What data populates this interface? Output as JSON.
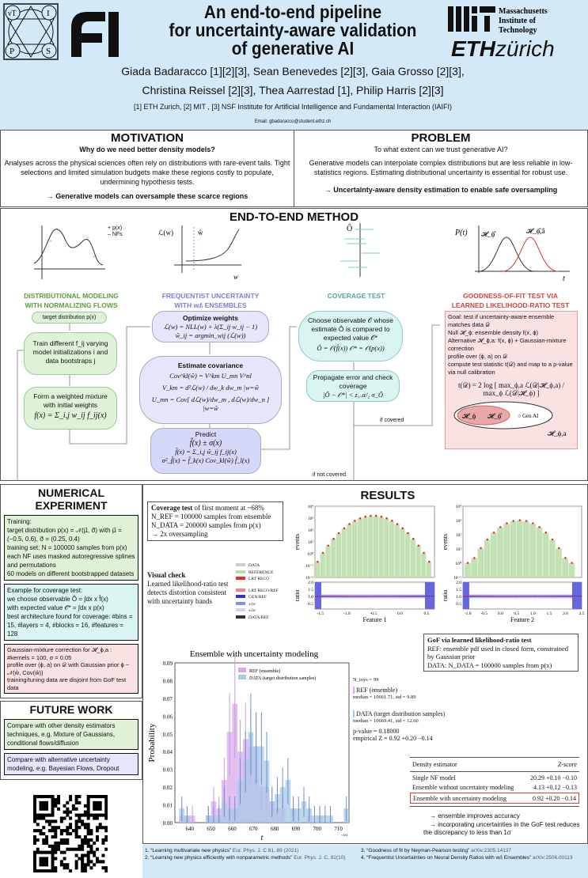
{
  "header": {
    "title_lines": [
      "An end-to-end pipeline",
      "for uncertainty-aware validation",
      "of generative AI"
    ],
    "authors_line1": "Giada Badaracco [1][2][3], Sean Benevedes [2][3], Gaia Grosso [2][3],",
    "authors_line2": "Christina Reissel [2][3], Thea Aarrestad [1],  Philip Harris [2][3]",
    "affiliations": "[1] ETH Zurich, [2] MIT , [3] NSF Institute for Artificial Intelligence and Fundamental Interaction (IAIFI)",
    "email": "Email: gbadaracco@student.ethz.ch",
    "logos": {
      "iaifi": "νT I P S",
      "fi": "FI",
      "mit": "Massachusetts Institute of Technology",
      "eth_bold": "ETH",
      "eth_light": "zürich"
    }
  },
  "motivation": {
    "heading": "MOTIVATION",
    "question": "Why do we need better density models?",
    "body": "Analyses across the physical sciences often rely on distributions with rare-event tails. Tight selections and limited simulation budgets make these regions costly to populate, undermining hypothesis tests.",
    "conclusion": "→ Generative models can oversample these scarce regions"
  },
  "problem": {
    "heading": "PROBLEM",
    "question": "To what extent can we trust generative AI?",
    "body": "Generative models can interpolate complex distributions but are less reliable in low-statistics regions. Estimating distributional uncertainty is essential for robust use.",
    "conclusion": "→ Uncertainty-aware density estimation to enable safe oversampling"
  },
  "method": {
    "heading": "END-TO-END METHOD",
    "col1": {
      "legend": [
        "+ p(x)",
        "– NFs"
      ],
      "label1": "DISTRIBUTIONAL MODELING",
      "label2": "WITH NORMALIZING FLOWS",
      "target": "target distribution p(x)",
      "train": "Train different f_ij varying model initializations i and data bootstraps j",
      "mixture": "Form a weighted mixture with initial weights",
      "mixture_eq": "f(x) = Σ_i,j w_ij f_ij(x)"
    },
    "col2": {
      "axis_y": "ℒ(w)",
      "axis_x": "w",
      "what": "ŵ",
      "label1": "FREQUENTIST UNCERTAINTY",
      "label2": "WITH wᵢfᵢ ENSEMBLES",
      "opt_title": "Optimize weights",
      "opt_eq1": "ℒ(w) = NLL(w) + λ(Σ_ij w_ij − 1)",
      "opt_eq2": "ŵ_ij = argmin_wij (ℒ(w))",
      "cov_title": "Estimate covariance",
      "cov_eq1": "Cov^kl(ŵ) = V^km U_mn V^nl",
      "cov_eq2": "V_km = d²ℒ(w) / dw_k dw_m |w=ŵ",
      "cov_eq3": "U_mn = Cov[ dℒ(w)/dw_m , dℒ(w)/dw_n ] |w=ŵ",
      "pred_title": "Predict",
      "pred_eq1": "f̂(x) ± σ(x)",
      "pred_eq2": "f̂(x) = Σ_i,j ŵ_ij f_ij(x)",
      "pred_eq3": "σ²_f̂(x) = f̂_k(x) Cov_kl(ŵ) f̂_l(x)"
    },
    "col3": {
      "axis_y": "Ô",
      "label": "COVERAGE TEST",
      "choose": "Choose observable 𝒪 whose estimate Ô is compared to expected value 𝒪*",
      "choose_eq": "Ô = 𝒪(f̂(x))   𝒪* = 𝒪(p(x))",
      "prop": "Propagate error and check coverage",
      "prop_eq": "|Ô − 𝒪*| < z₁₋α/₂ σ_Ô",
      "if_covered": "if covered",
      "if_not_covered": "if not covered"
    },
    "col4": {
      "axis_y": "P(t)",
      "axis_x": "t",
      "h0": "𝓗_ϕ̂",
      "h1": "𝓗_ϕ̂,â",
      "label1": "GOODNESS-OF-FIT TEST VIA",
      "label2": "LEARNED LIKELIHOOD-RATIO TEST",
      "bullets": [
        "Goal: test if uncertainty-aware ensemble matches data 𝒟",
        "Null 𝓗_ϕ: ensemble density f(x, ϕ)",
        "Alternative 𝓗_ϕ,a: f(x, ϕ) + Gaussian-mixture correction",
        "profile over (ϕ, a) on 𝒟",
        "compute test statistic t(𝒟) and map to a p-value via null calibration"
      ],
      "eq": "t(𝒟) = 2 log [ max_ϕ,a ℒ(𝒟|𝓗_ϕ,a) / max_ϕ ℒ(𝒟|𝓗_ϕ) ]",
      "venn": {
        "h_phi": "𝓗_ϕ",
        "h_phihat": "𝓗_ϕ̂",
        "genai": "○ Gen AI",
        "outer": "𝓗_ϕ,a"
      }
    }
  },
  "numerical": {
    "heading": "NUMERICAL EXPERIMENT",
    "training_title": "Training:",
    "training": [
      "target distribution p(x) = 𝒩(μ⃗, σ⃗) with μ⃗ = (−0.5, 0.6), σ⃗ = (0.25, 0.4)",
      "training set: N = 100000 samples from p(x)",
      "each NF uses masked autoregressive splines and permutations",
      "60 models on different bootstrapped datasets"
    ],
    "coverage_title": "Example for coverage test:",
    "coverage_lines": [
      "we choose observable Ô = ∫dx x f̂(x)",
      "with expected value 𝒪* = ∫dx x p(x)",
      "best architecture found for coverage: #bins = 15, #layers = 4, #blocks = 16, #features = 128"
    ],
    "gof": [
      "Gaussian-mixture correction for 𝓗_ϕ,a : #kernels = 100,  σ = 0.05",
      "profile over (ϕ, a) on 𝒟 with Gaussian prior ϕ ~ 𝒩(ŵ, Cov(ŵ))",
      "training/tuning data are disjoint from GoF test data"
    ]
  },
  "future": {
    "heading": "FUTURE WORK",
    "items": [
      "Compare with other density estimators techniques, e.g. Mixture of Gaussians, conditional flows/diffusion",
      "Compare with alternative uncertainty modeling, e.g. Bayesian Flows, Dropout"
    ]
  },
  "results": {
    "heading": "RESULTS",
    "coverage_box": {
      "title": "Coverage test",
      "title_rest": " of first moment at ~68%",
      "items": [
        "N_REF = 100000 samples from ensemble",
        "N_DATA = 200000 samples from p(x)"
      ],
      "conclusion": "→ 2x oversampling"
    },
    "visual": {
      "title": "Visual check",
      "body": "Learned likelihood-ratio test detects distortion consistent with uncertainty bands"
    },
    "legend": [
      "DATA",
      "REFERENCE",
      "LRT RECO",
      "LRT RECO/REF",
      "GEN/REF",
      "±1σ",
      "±2σ",
      "DATA/REF"
    ],
    "gof_box": {
      "title": "GoF via learned likelihood-ratio test",
      "items": [
        "REF: ensemble pdf used in closed form, constrained by Gaussian prior",
        "DATA:  N_DATA = 100000 samples from p(x)"
      ]
    },
    "stats": {
      "ntoys": "N_toys = 99",
      "ref_label": "REF (ensemble)",
      "ref_stat": "median = 10661.71, std = 9.89",
      "data_label": "DATA (target distribution samples)",
      "data_stat": "median = 10669.41, std = 12.60",
      "pvalue": "p-value = 0.18000",
      "z": "empirical Z = 0.92 +0.20 −0.14"
    },
    "table": {
      "headers": [
        "Density estimator",
        "Z-score"
      ],
      "rows": [
        [
          "Single NF model",
          "20.29 +0.10 −0.10"
        ],
        [
          "Ensemble without uncertainty modeling",
          "4.13 +0.12 −0.13"
        ],
        [
          "Ensemble with uncertainty modeling",
          "0.92 +0.20 −0.14"
        ]
      ],
      "highlight_row": 2
    },
    "conclusions": [
      "→ ensemble improves accuracy",
      "→ incorporating uncertainties in the GoF test reduces the discrepancy to less than 1σ"
    ]
  },
  "references": [
    {
      "text": "1. “Learning multivariate new physics” ",
      "link": "Eur. Phys. J. C 81, 89 (2021)"
    },
    {
      "text": "2. “Learning new physics efficiently with nonparametric methods” ",
      "link": "Eur. Phys. J. C, 82(10)"
    },
    {
      "text": "3. “Goodness of fit by Neyman-Pearson testing” ",
      "link": "arXiv:2305.14137"
    },
    {
      "text": "4. “Frequentist Uncertainties on Neural Density Ratios with wᵢfᵢ Ensembles” ",
      "link": "arXiv:2506.00113"
    }
  ],
  "colors": {
    "header_bg": "#d3e9f7",
    "green": "#5a9e3a",
    "blue": "#7b7be0",
    "teal": "#4fa79a",
    "red": "#d9403a",
    "ref_hist": "#d8a8ec",
    "data_hist": "#a8c8e6"
  },
  "chart_data": [
    {
      "type": "bar",
      "xlabel": "Feature 1",
      "ylabel": "events",
      "yscale": "log",
      "ylim": [
        0.01,
        10000
      ],
      "xlim": [
        -1.6,
        0.65
      ],
      "x": [
        -1.55,
        -1.45,
        -1.35,
        -1.25,
        -1.15,
        -1.05,
        -0.95,
        -0.85,
        -0.75,
        -0.65,
        -0.55,
        -0.45,
        -0.35,
        -0.25,
        -0.15,
        -0.05,
        0.05,
        0.15,
        0.25,
        0.35,
        0.45,
        0.55
      ],
      "values": [
        0.2,
        1.1,
        4.6,
        17,
        51,
        133,
        297,
        563,
        910,
        1253,
        1470,
        1470,
        1253,
        910,
        563,
        297,
        133,
        51,
        17,
        4.6,
        1.1,
        0.2
      ],
      "ratio": {
        "ylabel": "ratio",
        "ylim": [
          0.1,
          2.0
        ],
        "yticks": [
          0.5,
          1.0,
          1.5,
          2.0
        ],
        "xticks": [
          -1.5,
          -1.0,
          -0.5,
          0.0,
          0.5
        ]
      },
      "yticks": [
        "10⁻²",
        "10⁻¹",
        "10⁰",
        "10¹",
        "10²",
        "10³",
        "10⁴"
      ]
    },
    {
      "type": "bar",
      "xlabel": "Feature 2",
      "ylabel": "events",
      "yscale": "log",
      "ylim": [
        0.1,
        10000
      ],
      "xlim": [
        -1.15,
        2.5
      ],
      "x": [
        -1.0,
        -0.8,
        -0.6,
        -0.4,
        -0.2,
        0.0,
        0.2,
        0.4,
        0.6,
        0.8,
        1.0,
        1.2,
        1.4,
        1.6,
        1.8,
        2.0,
        2.2
      ],
      "values": [
        1,
        2.2,
        11,
        44,
        135,
        325,
        607,
        882,
        1000,
        882,
        607,
        325,
        135,
        44,
        11,
        2.2,
        1
      ],
      "ratio": {
        "ylabel": "ratio",
        "ylim": [
          0.1,
          2.0
        ],
        "yticks": [
          0.5,
          1.0,
          1.5,
          2.0
        ],
        "xticks": [
          -1.0,
          -0.5,
          0.0,
          0.5,
          1.0,
          1.5,
          2.0,
          2.5
        ]
      },
      "yticks": [
        "10⁻¹",
        "10⁰",
        "10¹",
        "10²",
        "10³",
        "10⁴"
      ]
    },
    {
      "type": "bar",
      "title": "Ensemble with uncertainty modeling",
      "xlabel": "t",
      "ylabel": "Probability",
      "x_offset_label": "×1e4",
      "xlim": [
        633,
        715
      ],
      "ylim": [
        0,
        0.09
      ],
      "xticks": [
        640,
        650,
        660,
        670,
        680,
        690,
        700,
        710
      ],
      "yticks": [
        0,
        0.01,
        0.02,
        0.03,
        0.04,
        0.05,
        0.06,
        0.07,
        0.08,
        0.09
      ],
      "bin_start": 635,
      "bin_width": 2.5,
      "series": [
        {
          "name": "REF (ensemble)",
          "values": [
            0.004,
            0.004,
            0.004,
            0,
            0,
            0.004,
            0.012,
            0.008,
            0.024,
            0.051,
            0.067,
            0.04,
            0.047,
            0.043,
            0.043,
            0.02,
            0.02,
            0.012,
            0.008,
            0.008,
            0,
            0.008,
            0,
            0,
            0.004,
            0,
            0.004,
            0,
            0,
            0,
            0,
            0
          ]
        },
        {
          "name": "DATA (target distribution samples)",
          "values": [
            0.008,
            0.004,
            0,
            0,
            0,
            0.004,
            0.004,
            0.004,
            0.012,
            0.008,
            0.008,
            0.024,
            0.035,
            0.051,
            0.043,
            0.043,
            0.035,
            0.012,
            0.016,
            0.02,
            0.024,
            0.008,
            0.008,
            0.012,
            0.008,
            0.004,
            0.004,
            0.004,
            0.004,
            0,
            0,
            0.008
          ]
        }
      ]
    }
  ]
}
